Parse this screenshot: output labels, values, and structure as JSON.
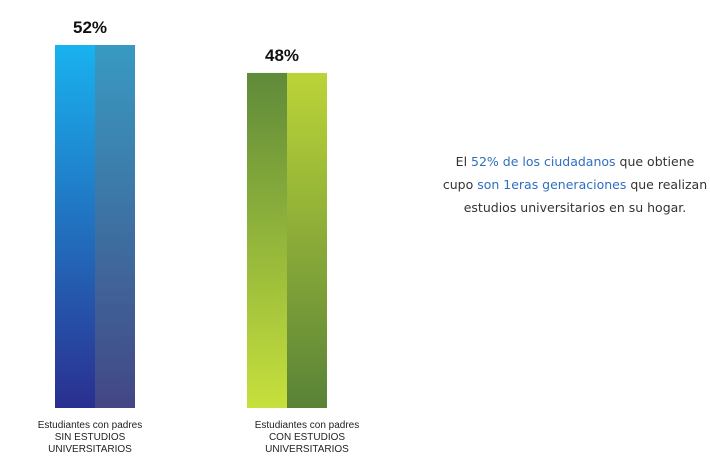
{
  "chart_data": {
    "type": "bar",
    "categories": [
      "Estudiantes con padres\nSIN ESTUDIOS\nUNIVERSITARIOS",
      "Estudiantes con padres\nCON ESTUDIOS\nUNIVERSITARIOS"
    ],
    "values": [
      52,
      48
    ],
    "value_labels": [
      "52%",
      "48%"
    ],
    "colors": [
      [
        "#19b2ef",
        "#2a2f8f"
      ],
      [
        "#5f8a3a",
        "#c6e03c"
      ]
    ],
    "annotation": [
      {
        "text": "El ",
        "color": "#333333"
      },
      {
        "text": "52% de los ciudadanos",
        "color": "#2f6fc0"
      },
      {
        "text": " que obtiene cupo ",
        "color": "#333333"
      },
      {
        "text": "son 1eras generaciones",
        "color": "#2f6fc0"
      },
      {
        "text": " que realizan estudios universitarios en su hogar.",
        "color": "#333333"
      }
    ]
  }
}
